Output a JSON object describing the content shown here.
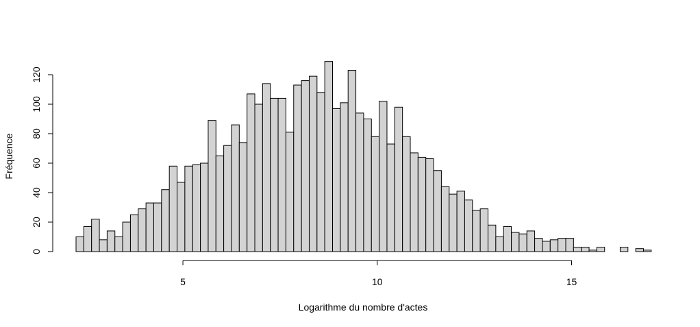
{
  "chart_data": {
    "type": "bar",
    "title": "",
    "xlabel": "Logarithme du nombre d'actes",
    "ylabel": "Fréquence",
    "x_range": [
      2.25,
      17.0
    ],
    "bin_width": 0.2,
    "ylim": [
      0,
      130
    ],
    "xticks": [
      5,
      10,
      15
    ],
    "yticks": [
      0,
      20,
      40,
      60,
      80,
      100,
      120
    ],
    "grid": false,
    "legend": "none",
    "bar_fill": "#d3d3d3",
    "bar_stroke": "#000000",
    "values": [
      10,
      17,
      22,
      8,
      14,
      10,
      20,
      25,
      29,
      33,
      33,
      42,
      58,
      47,
      58,
      59,
      60,
      89,
      65,
      72,
      86,
      74,
      107,
      100,
      114,
      104,
      104,
      81,
      113,
      116,
      119,
      108,
      129,
      97,
      101,
      123,
      94,
      90,
      78,
      102,
      73,
      98,
      78,
      67,
      64,
      63,
      55,
      44,
      39,
      41,
      35,
      28,
      29,
      18,
      10,
      17,
      13,
      12,
      14,
      9,
      7,
      8,
      9,
      9,
      3,
      3,
      1,
      3,
      0,
      0,
      3,
      0,
      2,
      1
    ]
  }
}
